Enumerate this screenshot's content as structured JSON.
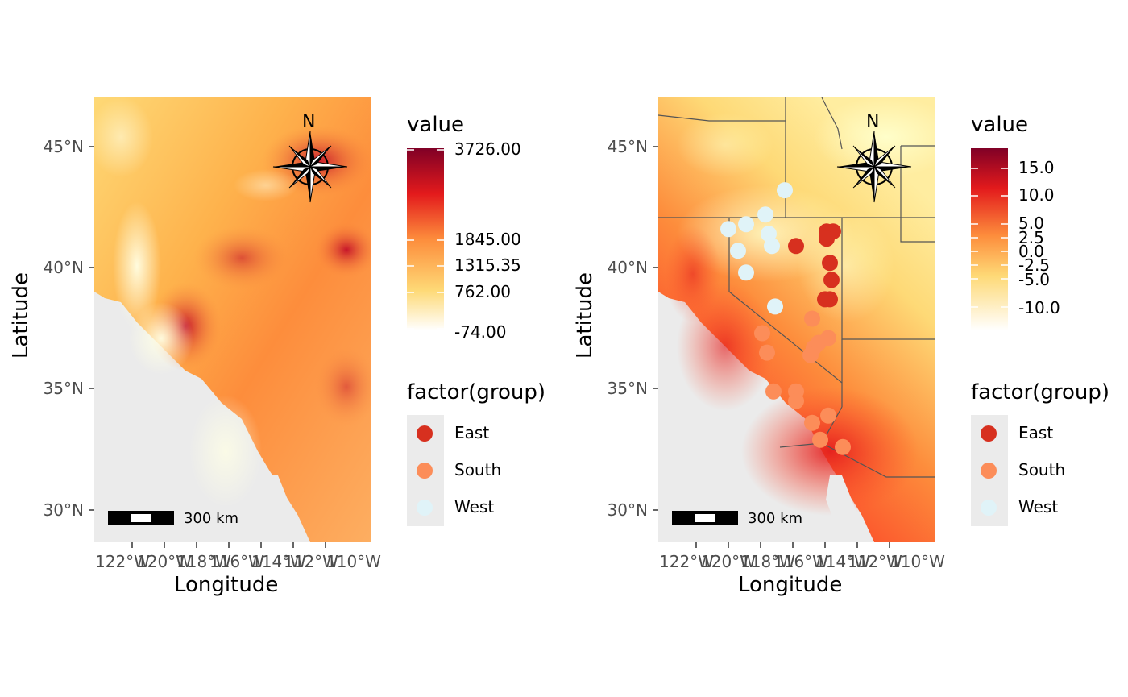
{
  "maps": [
    {
      "id": "elevation",
      "axes": {
        "xlabel": "Longitude",
        "ylabel": "Latitude",
        "y_ticks": [
          "45°N",
          "40°N",
          "35°N",
          "30°N"
        ],
        "x_ticks": [
          "122°W",
          "120°W",
          "118°W",
          "116°W",
          "114°W",
          "112°W",
          "110°W"
        ]
      },
      "colorbar": {
        "title": "value",
        "labels": [
          "3726.00",
          "1845.00",
          "1315.35",
          "762.00",
          "-74.00"
        ],
        "colors": [
          "#800026",
          "#e31a1c",
          "#fd8d3c",
          "#fed976",
          "#ffffcc"
        ]
      },
      "group_legend": {
        "title": "factor(group)",
        "items": [
          {
            "label": "East",
            "color": "#d7301f"
          },
          {
            "label": "South",
            "color": "#fc8d59"
          },
          {
            "label": "West",
            "color": "#e0f3f8"
          }
        ]
      },
      "scale_bar": {
        "label": "300 km"
      },
      "north_arrow": {
        "label": "N"
      }
    },
    {
      "id": "temperature",
      "axes": {
        "xlabel": "Longitude",
        "ylabel": "Latitude",
        "y_ticks": [
          "45°N",
          "40°N",
          "35°N",
          "30°N"
        ],
        "x_ticks": [
          "122°W",
          "120°W",
          "118°W",
          "116°W",
          "114°W",
          "112°W",
          "110°W"
        ]
      },
      "colorbar": {
        "title": "value",
        "labels": [
          "15.0",
          "10.0",
          "5.0",
          "2.5",
          "0.0",
          "-2.5",
          "-5.0",
          "-10.0"
        ],
        "colors": [
          "#800026",
          "#e31a1c",
          "#fd8d3c",
          "#fed976",
          "#ffffcc"
        ]
      },
      "group_legend": {
        "title": "factor(group)",
        "items": [
          {
            "label": "East",
            "color": "#d7301f"
          },
          {
            "label": "South",
            "color": "#fc8d59"
          },
          {
            "label": "West",
            "color": "#e0f3f8"
          }
        ]
      },
      "scale_bar": {
        "label": "300 km"
      },
      "north_arrow": {
        "label": "N"
      },
      "points": [
        {
          "group": "West",
          "lon": -120.0,
          "lat": 41.6
        },
        {
          "group": "West",
          "lon": -118.9,
          "lat": 41.8
        },
        {
          "group": "West",
          "lon": -117.7,
          "lat": 42.2
        },
        {
          "group": "West",
          "lon": -116.5,
          "lat": 43.2
        },
        {
          "group": "West",
          "lon": -117.5,
          "lat": 41.4
        },
        {
          "group": "West",
          "lon": -117.3,
          "lat": 40.9
        },
        {
          "group": "West",
          "lon": -119.4,
          "lat": 40.7
        },
        {
          "group": "West",
          "lon": -118.9,
          "lat": 39.8
        },
        {
          "group": "West",
          "lon": -117.1,
          "lat": 38.4
        },
        {
          "group": "East",
          "lon": -115.8,
          "lat": 40.9
        },
        {
          "group": "East",
          "lon": -113.9,
          "lat": 41.5
        },
        {
          "group": "East",
          "lon": -113.5,
          "lat": 41.5
        },
        {
          "group": "East",
          "lon": -113.9,
          "lat": 41.2
        },
        {
          "group": "East",
          "lon": -113.7,
          "lat": 40.2
        },
        {
          "group": "East",
          "lon": -113.6,
          "lat": 39.5
        },
        {
          "group": "East",
          "lon": -114.0,
          "lat": 38.7
        },
        {
          "group": "East",
          "lon": -113.7,
          "lat": 38.7
        },
        {
          "group": "South",
          "lon": -114.8,
          "lat": 37.9
        },
        {
          "group": "South",
          "lon": -117.9,
          "lat": 37.3
        },
        {
          "group": "South",
          "lon": -117.6,
          "lat": 36.5
        },
        {
          "group": "South",
          "lon": -114.7,
          "lat": 36.7
        },
        {
          "group": "South",
          "lon": -114.4,
          "lat": 36.9
        },
        {
          "group": "South",
          "lon": -113.8,
          "lat": 37.1
        },
        {
          "group": "South",
          "lon": -114.9,
          "lat": 36.4
        },
        {
          "group": "South",
          "lon": -117.2,
          "lat": 34.9
        },
        {
          "group": "South",
          "lon": -115.8,
          "lat": 34.9
        },
        {
          "group": "South",
          "lon": -115.8,
          "lat": 34.5
        },
        {
          "group": "South",
          "lon": -113.8,
          "lat": 33.9
        },
        {
          "group": "South",
          "lon": -114.8,
          "lat": 33.6
        },
        {
          "group": "South",
          "lon": -114.3,
          "lat": 32.9
        },
        {
          "group": "South",
          "lon": -112.9,
          "lat": 32.6
        }
      ]
    }
  ]
}
